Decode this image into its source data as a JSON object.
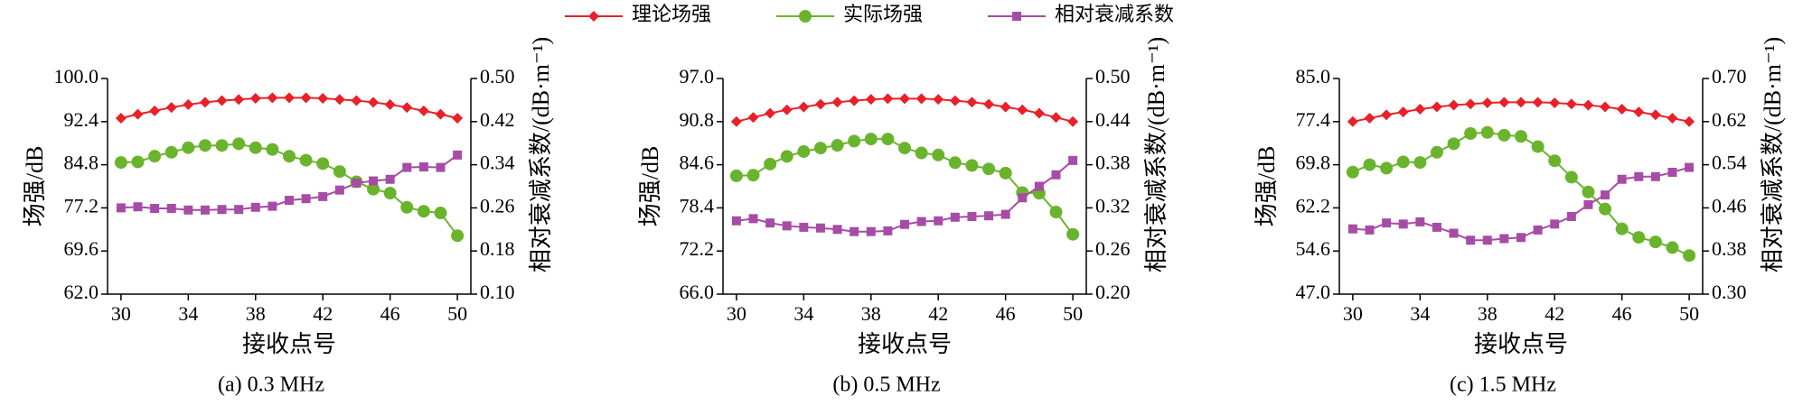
{
  "chart_data": [
    {
      "type": "line",
      "title": "(a)  0.3 MHz",
      "xlabel": "接收点号",
      "ylabel": "场强/dB",
      "y2label": "相对衰减系数/(dB·m⁻¹)",
      "x": [
        30,
        31,
        32,
        33,
        34,
        35,
        36,
        37,
        38,
        39,
        40,
        41,
        42,
        43,
        44,
        45,
        46,
        47,
        48,
        49,
        50
      ],
      "xlim": [
        29.2,
        50.8
      ],
      "xticks": [
        30,
        34,
        38,
        42,
        46,
        50
      ],
      "ylim": [
        62,
        100
      ],
      "yticks": [
        {
          "value": 62,
          "label": "62.0"
        },
        69.6,
        77.2,
        84.8,
        92.4,
        {
          "value": 100,
          "label": "100.0"
        }
      ],
      "y2lim": [
        0.1,
        0.5
      ],
      "y2ticks": [
        {
          "value": 0.1,
          "label": "0.10"
        },
        0.18,
        0.26,
        0.34,
        0.42,
        {
          "value": 0.5,
          "label": "0.50"
        }
      ],
      "series": [
        {
          "name": "理论场强",
          "color": "#e8202a",
          "marker": "diamond",
          "values": [
            93.0,
            93.7,
            94.3,
            94.9,
            95.4,
            95.8,
            96.1,
            96.3,
            96.5,
            96.6,
            96.6,
            96.6,
            96.5,
            96.3,
            96.1,
            95.8,
            95.4,
            94.9,
            94.3,
            93.7,
            93.0
          ]
        },
        {
          "name": "实际场强",
          "color": "#6ab42d",
          "marker": "circle",
          "values": [
            85.2,
            85.3,
            86.3,
            87.0,
            87.8,
            88.2,
            88.2,
            88.5,
            87.8,
            87.5,
            86.3,
            85.6,
            85.0,
            83.6,
            81.8,
            80.5,
            79.8,
            77.3,
            76.6,
            76.3,
            72.3
          ]
        },
        {
          "name": "相对衰减系数",
          "color": "#a64ca6",
          "marker": "square",
          "axis": "y2",
          "values": [
            0.26,
            0.262,
            0.259,
            0.259,
            0.256,
            0.256,
            0.257,
            0.257,
            0.261,
            0.263,
            0.274,
            0.277,
            0.281,
            0.293,
            0.306,
            0.31,
            0.313,
            0.335,
            0.336,
            0.335,
            0.358
          ]
        }
      ]
    },
    {
      "type": "line",
      "title": "(b)  0.5 MHz",
      "xlabel": "接收点号",
      "ylabel": "场强/dB",
      "y2label": "相对衰减系数/(dB·m⁻¹)",
      "x": [
        30,
        31,
        32,
        33,
        34,
        35,
        36,
        37,
        38,
        39,
        40,
        41,
        42,
        43,
        44,
        45,
        46,
        47,
        48,
        49,
        50
      ],
      "xlim": [
        29.2,
        50.8
      ],
      "xticks": [
        30,
        34,
        38,
        42,
        46,
        50
      ],
      "ylim": [
        66,
        97
      ],
      "yticks": [
        {
          "value": 66,
          "label": "66.0"
        },
        72.2,
        78.4,
        84.6,
        90.8,
        {
          "value": 97,
          "label": "97.0"
        }
      ],
      "y2lim": [
        0.2,
        0.5
      ],
      "y2ticks": [
        {
          "value": 0.2,
          "label": "0.20"
        },
        0.26,
        0.32,
        0.38,
        0.44,
        {
          "value": 0.5,
          "label": "0.50"
        }
      ],
      "series": [
        {
          "color": "#e8202a",
          "marker": "diamond",
          "values": [
            90.8,
            91.4,
            92.0,
            92.5,
            92.9,
            93.3,
            93.6,
            93.8,
            94.0,
            94.1,
            94.1,
            94.1,
            94.0,
            93.8,
            93.6,
            93.3,
            92.9,
            92.5,
            92.0,
            91.4,
            90.8
          ]
        },
        {
          "color": "#6ab42d",
          "marker": "circle",
          "values": [
            83.0,
            83.1,
            84.7,
            85.8,
            86.5,
            87.0,
            87.4,
            88.0,
            88.3,
            88.3,
            87.0,
            86.3,
            86.0,
            84.9,
            84.5,
            84.0,
            83.4,
            80.6,
            80.5,
            77.8,
            74.6
          ]
        },
        {
          "color": "#a64ca6",
          "marker": "square",
          "axis": "y2",
          "values": [
            0.302,
            0.305,
            0.299,
            0.295,
            0.293,
            0.292,
            0.29,
            0.287,
            0.287,
            0.288,
            0.297,
            0.301,
            0.302,
            0.307,
            0.308,
            0.309,
            0.311,
            0.334,
            0.35,
            0.366,
            0.386
          ]
        }
      ]
    },
    {
      "type": "line",
      "title": "(c)  1.5 MHz",
      "xlabel": "接收点号",
      "ylabel": "场强/dB",
      "y2label": "相对衰减系数/(dB·m⁻¹)",
      "x": [
        30,
        31,
        32,
        33,
        34,
        35,
        36,
        37,
        38,
        39,
        40,
        41,
        42,
        43,
        44,
        45,
        46,
        47,
        48,
        49,
        50
      ],
      "xlim": [
        29.2,
        50.8
      ],
      "xticks": [
        30,
        34,
        38,
        42,
        46,
        50
      ],
      "ylim": [
        47,
        85
      ],
      "yticks": [
        {
          "value": 47,
          "label": "47.0"
        },
        54.6,
        62.2,
        69.8,
        77.4,
        {
          "value": 85,
          "label": "85.0"
        }
      ],
      "y2lim": [
        0.3,
        0.7
      ],
      "y2ticks": [
        {
          "value": 0.3,
          "label": "0.30"
        },
        0.38,
        0.46,
        0.54,
        0.62,
        {
          "value": 0.7,
          "label": "0.70"
        }
      ],
      "series": [
        {
          "color": "#e8202a",
          "marker": "diamond",
          "values": [
            77.4,
            78.0,
            78.6,
            79.1,
            79.6,
            80.0,
            80.3,
            80.5,
            80.7,
            80.8,
            80.8,
            80.8,
            80.7,
            80.5,
            80.3,
            80.0,
            79.6,
            79.1,
            78.6,
            78.0,
            77.4
          ]
        },
        {
          "color": "#6ab42d",
          "marker": "circle",
          "values": [
            68.5,
            69.8,
            69.2,
            70.3,
            70.2,
            72.0,
            73.5,
            75.3,
            75.5,
            75.0,
            74.8,
            73.0,
            70.5,
            67.6,
            65.0,
            62.0,
            58.5,
            57.0,
            56.2,
            55.2,
            53.8
          ]
        },
        {
          "color": "#a64ca6",
          "marker": "square",
          "axis": "y2",
          "values": [
            0.421,
            0.419,
            0.432,
            0.43,
            0.434,
            0.424,
            0.413,
            0.4,
            0.4,
            0.403,
            0.405,
            0.419,
            0.43,
            0.444,
            0.466,
            0.484,
            0.513,
            0.518,
            0.518,
            0.526,
            0.535
          ]
        }
      ]
    }
  ]
}
